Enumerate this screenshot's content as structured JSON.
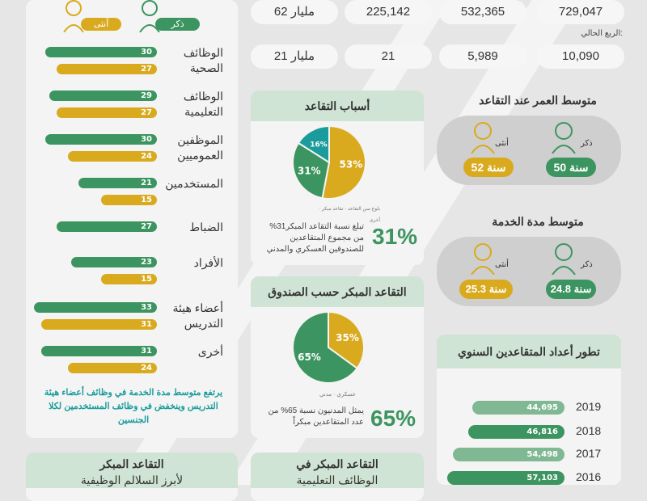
{
  "colors": {
    "male": "#3c9560",
    "female": "#d9aa1e",
    "teal": "#1a9c9c",
    "header": "#cfe4d4"
  },
  "top_stats": {
    "row1": [
      "729,047",
      "532,365",
      "225,142",
      "62 مليار"
    ],
    "row2_label": "الربع الحالي:",
    "row2": [
      "10,090",
      "5,989",
      "21",
      "21 مليار"
    ]
  },
  "gender_legend": {
    "male": "ذكر",
    "female": "أنثى"
  },
  "service_chart": {
    "type": "bar",
    "categories": [
      "الوظائف الصحية",
      "الوظائف التعليمية",
      "الموظفين العموميين",
      "المستخدمين",
      "الضباط",
      "الأفراد",
      "أعضاء هيئة التدريس",
      "أخرى"
    ],
    "series": [
      {
        "name": "ذكر",
        "values": [
          30,
          29,
          30,
          21,
          27,
          23,
          33,
          31
        ]
      },
      {
        "name": "أنثى",
        "values": [
          27,
          27,
          24,
          15,
          null,
          15,
          31,
          24
        ]
      }
    ],
    "note": "يرتفع متوسط مدة الخدمة في وظائف أعضاء هيئة التدريس  وينخفض في وظائف المستخدمين لكلا الجنسين"
  },
  "reasons_chart": {
    "type": "pie",
    "title": "أسباب التقاعد",
    "slices": [
      {
        "label": "بلوغ سن التقاعد",
        "value": 53
      },
      {
        "label": "تقاعد مبكر",
        "value": 31
      },
      {
        "label": "أخرى",
        "value": 16
      }
    ],
    "slice_labels": [
      "53%",
      "31%",
      "16%"
    ],
    "big": "31%",
    "note": "تبلغ نسبة التقاعد المبكر31% من مجموع المتقاعدين للصندوقين العسكري والمدني"
  },
  "fund_chart": {
    "type": "pie",
    "title": "التقاعد المبكر حسب الصندوق",
    "slices": [
      {
        "label": "عسكري",
        "value": 35
      },
      {
        "label": "مدني",
        "value": 65
      }
    ],
    "slice_labels": [
      "35%",
      "65%"
    ],
    "big": "65%",
    "note": "يمثل المدنيون نسبة 65% من عدد المتقاعدين مبكراً"
  },
  "avg_age": {
    "title": "متوسط العمر عند التقاعد",
    "male": "50 سنة",
    "female": "52 سنة",
    "male_label": "ذكر",
    "female_label": "أنثى"
  },
  "avg_service": {
    "title": "متوسط مدة الخدمة",
    "male": "24.8 سنة",
    "female": "25.3 سنة",
    "male_label": "ذكر",
    "female_label": "أنثى"
  },
  "trend_chart": {
    "type": "bar",
    "title": "تطور أعداد المتقاعدين السنوي",
    "categories": [
      "2019",
      "2018",
      "2017",
      "2016"
    ],
    "values": [
      44695,
      46816,
      54498,
      57103
    ],
    "value_labels": [
      "44,695",
      "46,816",
      "54,498",
      "57,103"
    ]
  },
  "bottom": {
    "left_title": "التقاعد المبكر",
    "left_sub": "لأبرز السلالم الوظيفية",
    "mid_title": "التقاعد المبكر في",
    "mid_sub": "الوظائف التعليمية"
  }
}
